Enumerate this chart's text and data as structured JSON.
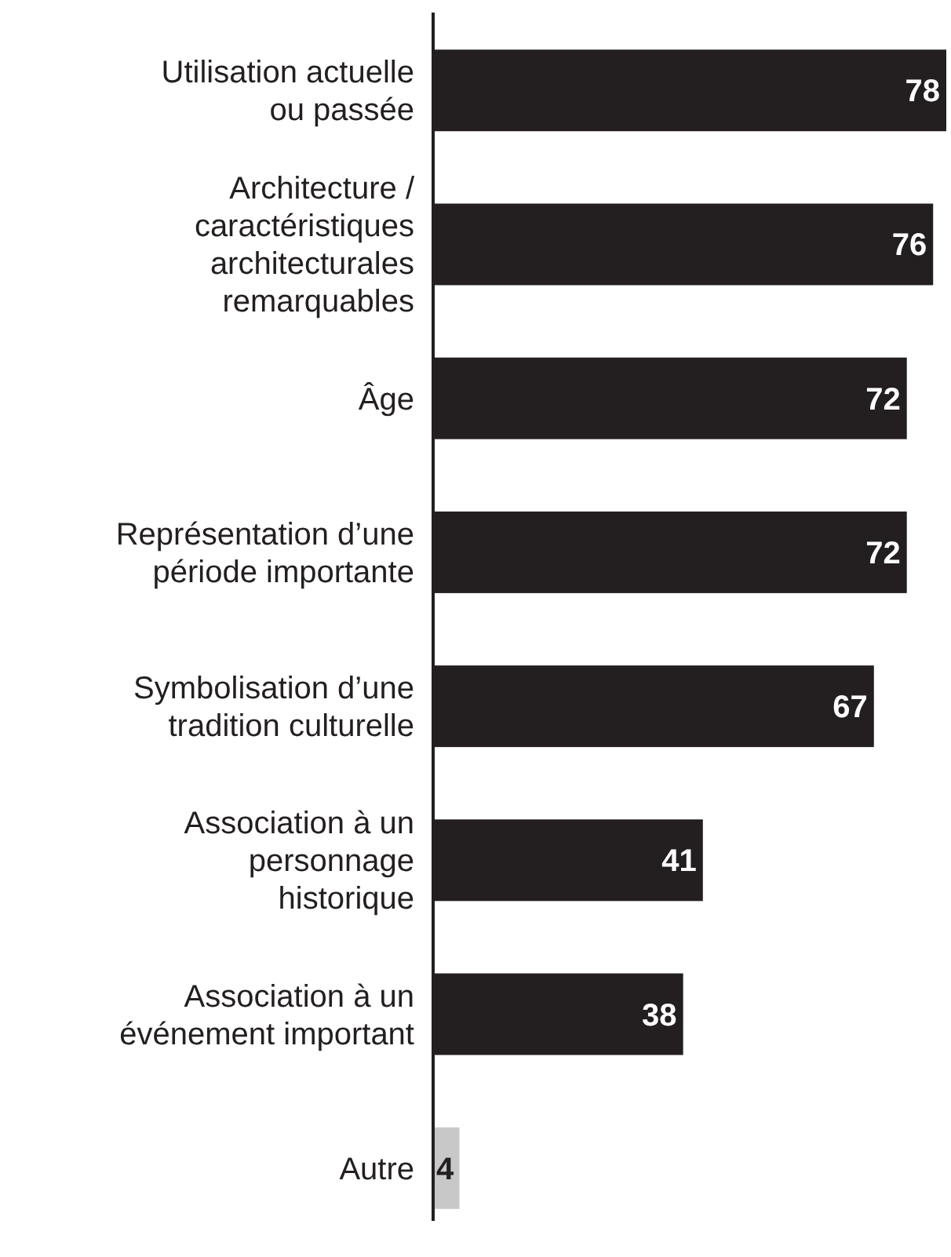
{
  "chart_data": {
    "type": "bar",
    "orientation": "horizontal",
    "data_labels": true,
    "categories": [
      "Utilisation actuelle ou passée",
      "Architecture / caractéristiques architecturales remarquables",
      "Âge",
      "Représentation d’une période importante",
      "Symbolisation d’une tradition culturelle",
      "Association à un personnage historique",
      "Association à un événement important",
      "Autre"
    ],
    "values": [
      78,
      76,
      72,
      72,
      67,
      41,
      38,
      4
    ],
    "colors": [
      "#231f20",
      "#231f20",
      "#231f20",
      "#231f20",
      "#231f20",
      "#231f20",
      "#231f20",
      "#c8c8c8"
    ],
    "xlim": [
      0,
      78
    ]
  }
}
